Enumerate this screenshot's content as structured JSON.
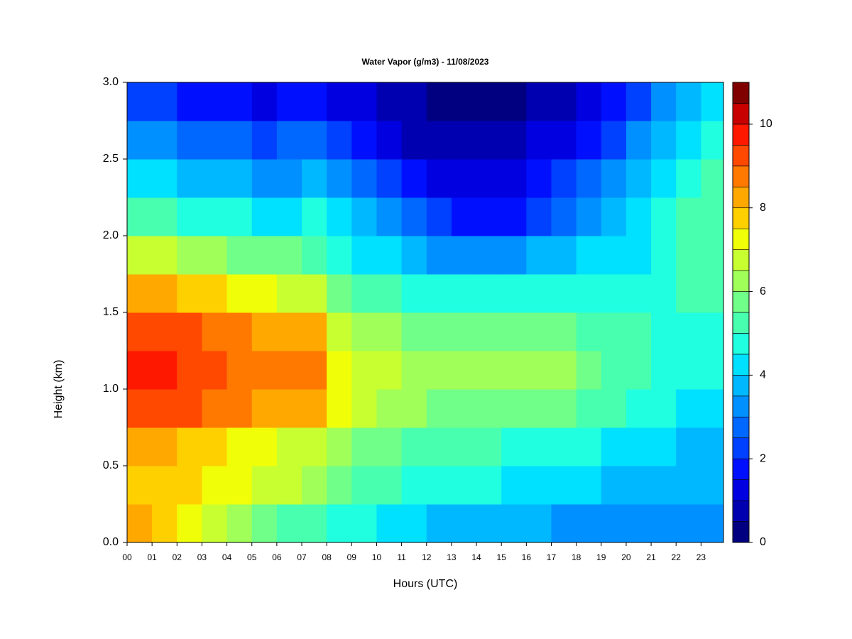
{
  "chart_data": {
    "type": "heatmap",
    "title": "Water Vapor (g/m3) - 11/08/2023",
    "xlabel": "Hours (UTC)",
    "ylabel": "Height (km)",
    "xlim": [
      0,
      23.9
    ],
    "ylim": [
      0,
      3
    ],
    "xticks": [
      {
        "value": 0,
        "label": "00"
      },
      {
        "value": 1,
        "label": "01"
      },
      {
        "value": 2,
        "label": "02"
      },
      {
        "value": 3,
        "label": "03"
      },
      {
        "value": 4,
        "label": "04"
      },
      {
        "value": 5,
        "label": "05"
      },
      {
        "value": 6,
        "label": "06"
      },
      {
        "value": 7,
        "label": "07"
      },
      {
        "value": 8,
        "label": "08"
      },
      {
        "value": 9,
        "label": "09"
      },
      10,
      11,
      12,
      13,
      14,
      15,
      16,
      17,
      18,
      19,
      20,
      21,
      22,
      23
    ],
    "yticks": [
      {
        "value": 0,
        "label": "0.0"
      },
      0.5,
      {
        "value": 1,
        "label": "1.0"
      },
      1.5,
      {
        "value": 2,
        "label": "2.0"
      },
      2.5,
      {
        "value": 3,
        "label": "3.0"
      }
    ],
    "x": [
      0.5,
      1.5,
      2.5,
      3.5,
      4.5,
      5.5,
      6.5,
      7.5,
      8.5,
      9.5,
      10.5,
      11.5,
      12.5,
      13.5,
      14.5,
      15.5,
      16.5,
      17.5,
      18.5,
      19.5,
      20.5,
      21.5,
      22.5,
      23.5
    ],
    "y": [
      0.125,
      0.375,
      0.625,
      0.875,
      1.125,
      1.375,
      1.625,
      1.875,
      2.125,
      2.375,
      2.625,
      2.875
    ],
    "z": [
      [
        8,
        7.5,
        7,
        6.5,
        6,
        5.5,
        5,
        5,
        4.5,
        4.5,
        4,
        4,
        3.5,
        3.5,
        3.5,
        3.5,
        3.5,
        3,
        3,
        3,
        3,
        3,
        3,
        3
      ],
      [
        7.5,
        7.5,
        7.5,
        7,
        7,
        6.5,
        6.5,
        6,
        5.5,
        5,
        5,
        4.5,
        4.5,
        4.5,
        4.5,
        4,
        4,
        4,
        4,
        3.5,
        3.5,
        3.5,
        3.5,
        3.5
      ],
      [
        8,
        8,
        7.5,
        7.5,
        7,
        7,
        6.5,
        6.5,
        6,
        5.5,
        5.5,
        5,
        5,
        5,
        5,
        4.5,
        4.5,
        4.5,
        4.5,
        4,
        4,
        4,
        3.5,
        3.5
      ],
      [
        9,
        9,
        9,
        8.5,
        8.5,
        8,
        8,
        8,
        7,
        6.5,
        6,
        6,
        5.5,
        5.5,
        5.5,
        5.5,
        5.5,
        5.5,
        5,
        5,
        4.5,
        4.5,
        4,
        4
      ],
      [
        9.5,
        9.5,
        9,
        9,
        8.5,
        8.5,
        8.5,
        8.5,
        7,
        6.5,
        6.5,
        6,
        6,
        6,
        6,
        6,
        6,
        6,
        5.5,
        5,
        5,
        4.5,
        4.5,
        4.5
      ],
      [
        9,
        9,
        9,
        8.5,
        8.5,
        8,
        8,
        8,
        6.5,
        6,
        6,
        5.5,
        5.5,
        5.5,
        5.5,
        5.5,
        5.5,
        5.5,
        5,
        5,
        5,
        4.5,
        4.5,
        4.5
      ],
      [
        8,
        8,
        7.5,
        7.5,
        7,
        7,
        6.5,
        6.5,
        5.5,
        5,
        5,
        4.5,
        4.5,
        4.5,
        4.5,
        4.5,
        4.5,
        4.5,
        4.5,
        4.5,
        4.5,
        4.5,
        5,
        5
      ],
      [
        6.5,
        6.5,
        6,
        6,
        5.5,
        5.5,
        5.5,
        5,
        4.5,
        4,
        4,
        3.5,
        3,
        3,
        3,
        3,
        3.5,
        3.5,
        4,
        4,
        4,
        4.5,
        5,
        5
      ],
      [
        5,
        5,
        4.5,
        4.5,
        4.5,
        4,
        4,
        4.5,
        4,
        3.5,
        3,
        2.5,
        2,
        1.5,
        1.5,
        1.5,
        2,
        2.5,
        3,
        3.5,
        4,
        4.5,
        5,
        5
      ],
      [
        4,
        4,
        3.5,
        3.5,
        3.5,
        3,
        3,
        3.5,
        3,
        2.5,
        2,
        1.5,
        1,
        1,
        1,
        1,
        1.5,
        2,
        2.5,
        3,
        3.5,
        4,
        4.5,
        5
      ],
      [
        3,
        3,
        2.5,
        2.5,
        2.5,
        2,
        2.5,
        2.5,
        2,
        1.5,
        1,
        0.5,
        0.5,
        0.5,
        0.5,
        0.5,
        1,
        1,
        1.5,
        2,
        3,
        3.5,
        4,
        4.5
      ],
      [
        2,
        2,
        1.5,
        1.5,
        1.5,
        1,
        1.5,
        1.5,
        1,
        1,
        0.5,
        0.5,
        0.3,
        0.3,
        0.3,
        0.3,
        0.5,
        0.5,
        1,
        1.5,
        2,
        3,
        3.5,
        4
      ]
    ],
    "colorbar": {
      "levels": [
        0,
        0.5,
        1,
        1.5,
        2,
        2.5,
        3,
        3.5,
        4,
        4.5,
        5,
        5.5,
        6,
        6.5,
        7,
        7.5,
        8,
        8.5,
        9,
        9.5,
        10,
        10.5,
        11
      ],
      "ticks": [
        0,
        2,
        4,
        6,
        8,
        10
      ],
      "colors": [
        "#000080",
        "#0000b0",
        "#0000e0",
        "#0010ff",
        "#0040ff",
        "#0068ff",
        "#0090ff",
        "#00b8ff",
        "#00e0ff",
        "#20ffe0",
        "#48ffb0",
        "#70ff88",
        "#a0ff58",
        "#c8ff30",
        "#f0ff08",
        "#ffd000",
        "#ffa800",
        "#ff7800",
        "#ff4800",
        "#ff1800",
        "#c80000",
        "#800000"
      ]
    }
  }
}
